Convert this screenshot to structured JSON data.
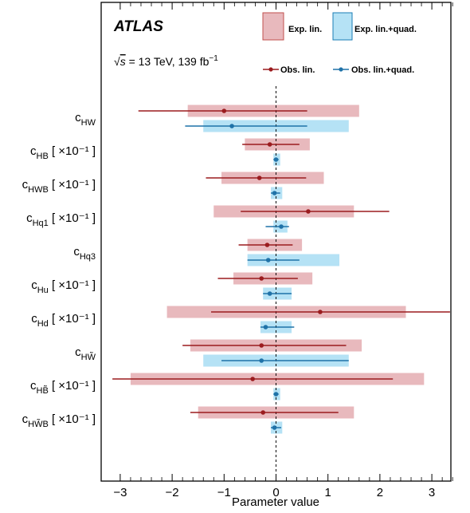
{
  "chart_data": {
    "type": "error-bar-summary",
    "experiment": "ATLAS",
    "energy_label": {
      "sqrt": "s",
      "text": " = 13 TeV, 139 fb",
      "sup": "−1"
    },
    "xlabel": "Parameter value",
    "xlim": [
      -3.3,
      3.5
    ],
    "xticks": [
      -3,
      -2,
      -1,
      0,
      1,
      2,
      3
    ],
    "xtick_labels": [
      "−3",
      "−2",
      "−1",
      "0",
      "1",
      "2",
      "3"
    ],
    "reference_line_x": 0,
    "legend": {
      "exp_lin": "Exp. lin.",
      "exp_quad": "Exp. lin.+quad.",
      "obs_lin": "Obs. lin.",
      "obs_quad": "Obs. lin.+quad."
    },
    "colors": {
      "exp_lin_fill": "#e8b9bd",
      "exp_lin_edge": "#c0504d",
      "exp_quad_fill": "#b5e2f5",
      "exp_quad_edge": "#1a7db5",
      "obs_lin": "#9b1c1f",
      "obs_quad": "#1f72a8"
    },
    "parameters": [
      {
        "name": "c",
        "sub": "HW",
        "scale": "",
        "exp_lin": [
          -1.7,
          1.6
        ],
        "obs_lin": {
          "value": -1.0,
          "interval": [
            -2.65,
            0.6
          ]
        },
        "exp_quad": [
          -1.4,
          1.4
        ],
        "obs_quad": {
          "value": -0.85,
          "interval": [
            -1.75,
            0.6
          ]
        }
      },
      {
        "name": "c",
        "sub": "HB",
        "scale": "[ ×10⁻¹ ]",
        "exp_lin": [
          -0.6,
          0.65
        ],
        "obs_lin": {
          "value": -0.12,
          "interval": [
            -0.65,
            0.45
          ]
        },
        "exp_quad": [
          -0.05,
          0.08
        ],
        "obs_quad": {
          "value": 0.0,
          "interval": [
            -0.05,
            0.05
          ]
        }
      },
      {
        "name": "c",
        "sub": "HWB",
        "scale": "[ ×10⁻¹ ]",
        "exp_lin": [
          -1.05,
          0.92
        ],
        "obs_lin": {
          "value": -0.32,
          "interval": [
            -1.35,
            0.58
          ]
        },
        "exp_quad": [
          -0.1,
          0.12
        ],
        "obs_quad": {
          "value": -0.03,
          "interval": [
            -0.1,
            0.08
          ]
        }
      },
      {
        "name": "c",
        "sub": "Hq1",
        "scale": "[ ×10⁻¹ ]",
        "exp_lin": [
          -1.2,
          1.5
        ],
        "obs_lin": {
          "value": 0.62,
          "interval": [
            -0.68,
            2.18
          ]
        },
        "exp_quad": [
          -0.05,
          0.22
        ],
        "obs_quad": {
          "value": 0.1,
          "interval": [
            -0.2,
            0.25
          ]
        }
      },
      {
        "name": "c",
        "sub": "Hq3",
        "scale": "",
        "exp_lin": [
          -0.55,
          0.5
        ],
        "obs_lin": {
          "value": -0.17,
          "interval": [
            -0.72,
            0.32
          ]
        },
        "exp_quad": [
          -0.55,
          1.22
        ],
        "obs_quad": {
          "value": -0.15,
          "interval": [
            -0.55,
            0.45
          ]
        }
      },
      {
        "name": "c",
        "sub": "Hu",
        "scale": "[ ×10⁻¹ ]",
        "exp_lin": [
          -0.82,
          0.7
        ],
        "obs_lin": {
          "value": -0.28,
          "interval": [
            -1.12,
            0.42
          ]
        },
        "exp_quad": [
          -0.25,
          0.3
        ],
        "obs_quad": {
          "value": -0.12,
          "interval": [
            -0.25,
            0.3
          ]
        }
      },
      {
        "name": "c",
        "sub": "Hd",
        "scale": "[ ×10⁻¹ ]",
        "exp_lin": [
          -2.1,
          2.5
        ],
        "obs_lin": {
          "value": 0.85,
          "interval": [
            -1.25,
            3.35
          ]
        },
        "exp_quad": [
          -0.3,
          0.3
        ],
        "obs_quad": {
          "value": -0.2,
          "interval": [
            -0.3,
            0.35
          ]
        }
      },
      {
        "name": "c",
        "sub": "HW̃",
        "scale": "",
        "exp_lin": [
          -1.65,
          1.65
        ],
        "obs_lin": {
          "value": -0.28,
          "interval": [
            -1.8,
            1.35
          ]
        },
        "exp_quad": [
          -1.4,
          1.4
        ],
        "obs_quad": {
          "value": -0.28,
          "interval": [
            -1.05,
            1.4
          ]
        }
      },
      {
        "name": "c",
        "sub": "HB̃",
        "scale": "[ ×10⁻¹ ]",
        "exp_lin": [
          -2.8,
          2.85
        ],
        "obs_lin": {
          "value": -0.45,
          "interval": [
            -3.15,
            2.25
          ]
        },
        "exp_quad": [
          -0.05,
          0.08
        ],
        "obs_quad": {
          "value": 0.0,
          "interval": [
            -0.05,
            0.05
          ]
        }
      },
      {
        "name": "c",
        "sub": "HW̃B",
        "scale": "[ ×10⁻¹ ]",
        "exp_lin": [
          -1.5,
          1.5
        ],
        "obs_lin": {
          "value": -0.25,
          "interval": [
            -1.65,
            1.2
          ]
        },
        "exp_quad": [
          -0.1,
          0.12
        ],
        "obs_quad": {
          "value": -0.03,
          "interval": [
            -0.1,
            0.1
          ]
        }
      }
    ]
  }
}
